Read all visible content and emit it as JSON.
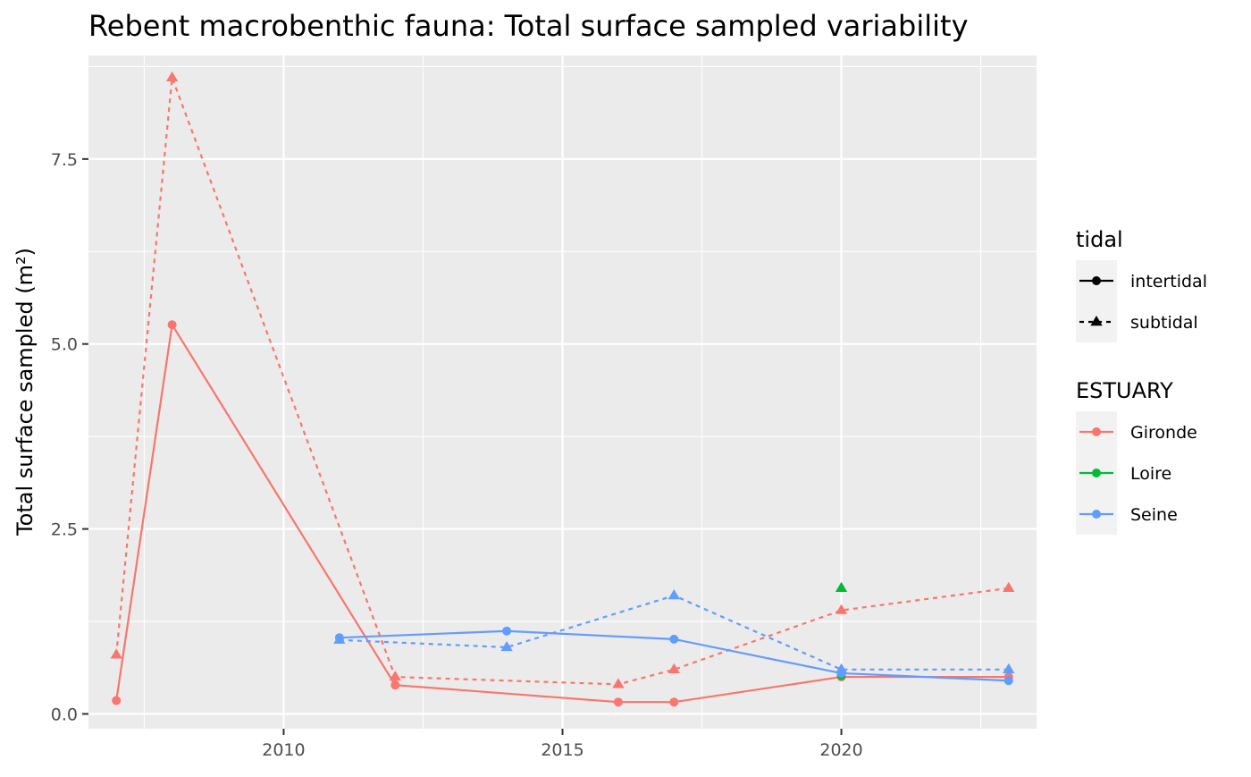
{
  "chart_data": {
    "type": "line",
    "title": "Rebent macrobenthic fauna: Total surface sampled variability",
    "xlabel": "",
    "ylabel": "Total surface sampled (m²)",
    "xlim": [
      2006.5,
      2023.5
    ],
    "ylim": [
      -0.2,
      8.9
    ],
    "x_ticks": [
      2010,
      2015,
      2020
    ],
    "x_minor_ticks": [
      2007.5,
      2012.5,
      2017.5,
      2022.5
    ],
    "y_ticks": [
      0.0,
      2.5,
      5.0,
      7.5
    ],
    "y_tick_labels": [
      "0.0",
      "2.5",
      "5.0",
      "7.5"
    ],
    "y_minor_ticks": [
      1.25,
      3.75,
      6.25,
      8.75
    ],
    "grid": true,
    "panel_background": "#EBEBEB",
    "legend_position": "right",
    "legends": [
      {
        "title": "tidal",
        "entries": [
          {
            "label": "intertidal",
            "linestyle": "solid",
            "marker": "circle"
          },
          {
            "label": "subtidal",
            "linestyle": "dashed",
            "marker": "triangle"
          }
        ]
      },
      {
        "title": "ESTUARY",
        "entries": [
          {
            "label": "Gironde",
            "color": "#F8766D"
          },
          {
            "label": "Loire",
            "color": "#00BA38"
          },
          {
            "label": "Seine",
            "color": "#619CFF"
          }
        ]
      }
    ],
    "series": [
      {
        "estuary": "Gironde",
        "tidal": "intertidal",
        "color": "#F8766D",
        "linestyle": "solid",
        "marker": "circle",
        "x": [
          2007,
          2008,
          2012,
          2016,
          2017,
          2020,
          2023
        ],
        "y": [
          0.18,
          5.26,
          0.39,
          0.16,
          0.16,
          0.5,
          0.5
        ]
      },
      {
        "estuary": "Gironde",
        "tidal": "subtidal",
        "color": "#F8766D",
        "linestyle": "dashed",
        "marker": "triangle",
        "x": [
          2007,
          2008,
          2012,
          2016,
          2017,
          2020,
          2023
        ],
        "y": [
          0.8,
          8.6,
          0.5,
          0.4,
          0.6,
          1.4,
          1.7
        ]
      },
      {
        "estuary": "Loire",
        "tidal": "intertidal",
        "color": "#00BA38",
        "linestyle": "solid",
        "marker": "circle",
        "x": [
          2020
        ],
        "y": [
          0.52
        ]
      },
      {
        "estuary": "Loire",
        "tidal": "subtidal",
        "color": "#00BA38",
        "linestyle": "dashed",
        "marker": "triangle",
        "x": [
          2020
        ],
        "y": [
          1.7
        ]
      },
      {
        "estuary": "Seine",
        "tidal": "intertidal",
        "color": "#619CFF",
        "linestyle": "solid",
        "marker": "circle",
        "x": [
          2011,
          2014,
          2017,
          2020,
          2023
        ],
        "y": [
          1.03,
          1.12,
          1.01,
          0.55,
          0.45
        ]
      },
      {
        "estuary": "Seine",
        "tidal": "subtidal",
        "color": "#619CFF",
        "linestyle": "dashed",
        "marker": "triangle",
        "x": [
          2011,
          2014,
          2017,
          2020,
          2023
        ],
        "y": [
          1.0,
          0.9,
          1.6,
          0.6,
          0.6
        ]
      }
    ]
  }
}
